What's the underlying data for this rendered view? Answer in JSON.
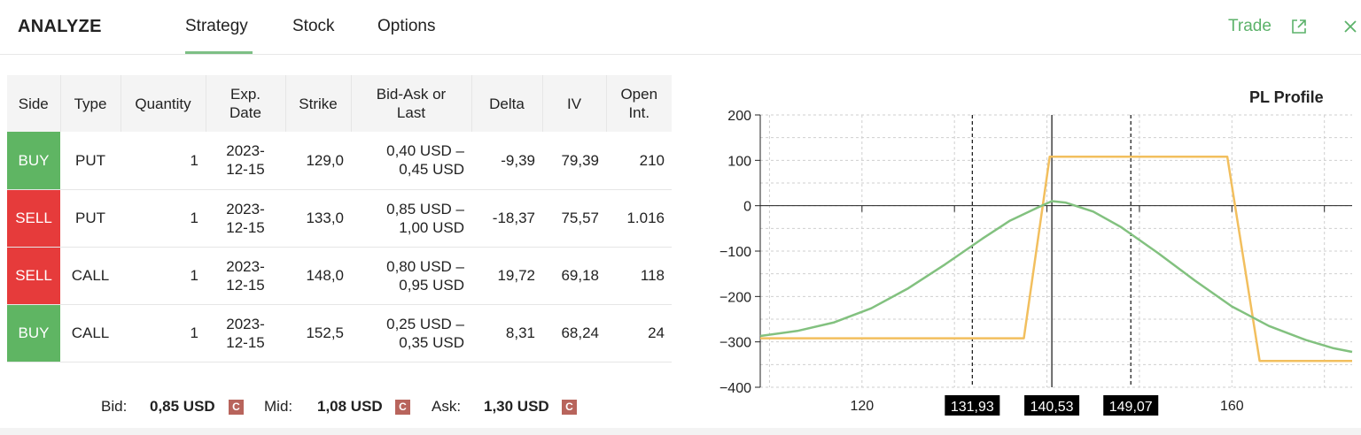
{
  "header": {
    "title": "ANALYZE",
    "tabs": [
      {
        "label": "Strategy",
        "active": true
      },
      {
        "label": "Stock",
        "active": false
      },
      {
        "label": "Options",
        "active": false
      }
    ],
    "trade_label": "Trade",
    "icons": {
      "external": "external-link-icon",
      "close": "close-icon"
    }
  },
  "table": {
    "headers": {
      "side": "Side",
      "type": "Type",
      "quantity": "Quantity",
      "exp_1": "Exp.",
      "exp_2": "Date",
      "strike": "Strike",
      "bidask_1": "Bid-Ask or",
      "bidask_2": "Last",
      "delta": "Delta",
      "iv": "IV",
      "oi_1": "Open",
      "oi_2": "Int."
    },
    "rows": [
      {
        "side": "BUY",
        "type": "PUT",
        "quantity": "1",
        "exp_1": "2023-",
        "exp_2": "12-15",
        "strike": "129,0",
        "bid_1": "0,40 USD –",
        "bid_2": "0,45 USD",
        "delta": "-9,39",
        "iv": "79,39",
        "oi": "210"
      },
      {
        "side": "SELL",
        "type": "PUT",
        "quantity": "1",
        "exp_1": "2023-",
        "exp_2": "12-15",
        "strike": "133,0",
        "bid_1": "0,85 USD –",
        "bid_2": "1,00 USD",
        "delta": "-18,37",
        "iv": "75,57",
        "oi": "1.016"
      },
      {
        "side": "SELL",
        "type": "CALL",
        "quantity": "1",
        "exp_1": "2023-",
        "exp_2": "12-15",
        "strike": "148,0",
        "bid_1": "0,80 USD –",
        "bid_2": "0,95 USD",
        "delta": "19,72",
        "iv": "69,18",
        "oi": "118"
      },
      {
        "side": "BUY",
        "type": "CALL",
        "quantity": "1",
        "exp_1": "2023-",
        "exp_2": "12-15",
        "strike": "152,5",
        "bid_1": "0,25 USD –",
        "bid_2": "0,35 USD",
        "delta": "8,31",
        "iv": "68,24",
        "oi": "24"
      }
    ]
  },
  "totals": {
    "bid_label": "Bid:",
    "bid_value": "0,85 USD",
    "mid_label": "Mid:",
    "mid_value": "1,08 USD",
    "ask_label": "Ask:",
    "ask_value": "1,30 USD",
    "badge": "C"
  },
  "colors": {
    "buy": "#5fb563",
    "sell": "#e63b3b",
    "accent": "#5cb26a",
    "payoff": "#f2bf5e",
    "probability": "#82c17f"
  },
  "chart_data": {
    "type": "line",
    "title": "PL Profile",
    "xlim": [
      109,
      173
    ],
    "ylim": [
      -400,
      200
    ],
    "xticks": [
      120,
      160
    ],
    "yticks": [
      200,
      100,
      0,
      -100,
      -200,
      -300,
      -400
    ],
    "grid": true,
    "series": [
      {
        "x": [
          109,
          137.5,
          140.3,
          159.5,
          163,
          173
        ],
        "y": [
          -292,
          -292,
          108,
          108,
          -342,
          -342
        ]
      },
      {
        "x": [
          109,
          113,
          117,
          121,
          125,
          129,
          133,
          136,
          139,
          140.53,
          142,
          145,
          148,
          152,
          156,
          160,
          164,
          168,
          171,
          173
        ],
        "y": [
          -287,
          -276,
          -257,
          -226,
          -182,
          -129,
          -73,
          -33,
          -4,
          10,
          7,
          -13,
          -47,
          -104,
          -165,
          -222,
          -265,
          -296,
          -314,
          -322
        ]
      }
    ],
    "markers": [
      {
        "x": 131.93,
        "label": "131,93",
        "style": "dashed"
      },
      {
        "x": 140.53,
        "label": "140,53",
        "style": "solid"
      },
      {
        "x": 149.07,
        "label": "149,07",
        "style": "dashed"
      }
    ]
  }
}
